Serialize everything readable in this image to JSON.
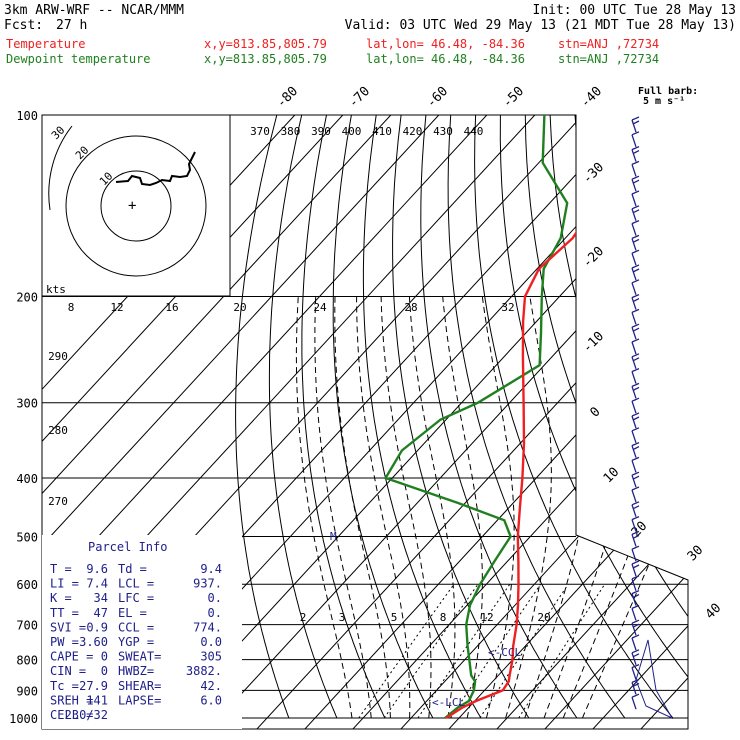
{
  "header": {
    "model": "3km ARW-WRF -- NCAR/MMM",
    "init": "Init: 00 UTC Tue 28 May 13",
    "fcst_label": "Fcst:",
    "fcst_value": "27 h",
    "valid": "Valid: 03 UTC Wed 29 May 13 (21 MDT Tue 28 May 13)",
    "temp_label": "Temperature",
    "temp_loc": "x,y=813.85,805.79",
    "temp_latlon": "lat,lon= 46.48, -84.36",
    "temp_stn": "stn=ANJ ,72734",
    "dew_label": "Dewpoint temperature",
    "dew_loc": "x,y=813.85,805.79",
    "dew_latlon": "lat,lon= 46.48, -84.36",
    "dew_stn": "stn=ANJ ,72734"
  },
  "colors": {
    "temperature": "#ee2020",
    "dewpoint": "#208020",
    "header_text": "#000000",
    "panel_text": "#20208a",
    "wind_barbs": "#20208a"
  },
  "barb_legend": {
    "title": "Full barb:",
    "value": "5 m s⁻¹"
  },
  "parcel_info": {
    "title": "Parcel Info",
    "rows": [
      [
        "T   =",
        "9.6",
        "Td  =",
        "9.4"
      ],
      [
        "LI  =",
        "7.4",
        "LCL =",
        "937."
      ],
      [
        "K   =",
        "34",
        "LFC =",
        "0."
      ],
      [
        "TT  =",
        "47",
        "EL  =",
        "0."
      ],
      [
        "SVI =",
        "0.9",
        "CCL =",
        "774."
      ],
      [
        "PW  =",
        "3.60",
        "YGP =",
        "0.0"
      ],
      [
        "CAPE =",
        "0",
        "SWEAT=",
        "305"
      ],
      [
        "CIN  =",
        "0",
        "HWBZ=",
        "3882."
      ],
      [
        "Tc   =",
        "27.9",
        "SHEAR=",
        "42."
      ],
      [
        "SREH =",
        "141",
        "LAPSE=",
        "6.0"
      ],
      [
        "CELL =",
        "230/32",
        "",
        ""
      ]
    ]
  },
  "hodograph": {
    "units": "kts",
    "ring_labels": [
      "10",
      "20",
      "30"
    ]
  },
  "chart_data": {
    "type": "line",
    "title": "",
    "xlabel": "",
    "ylabel": "",
    "pressure_ticks": [
      "100",
      "200",
      "300",
      "400",
      "500",
      "600",
      "700",
      "800",
      "900",
      "1000"
    ],
    "isotherm_labels": [
      "-80",
      "-70",
      "-60",
      "-50",
      "-40",
      "-30",
      "-20",
      "-10",
      "0",
      "10",
      "20",
      "30",
      "40"
    ],
    "theta_labels": [
      "370",
      "380",
      "390",
      "400",
      "410",
      "420",
      "430",
      "440"
    ],
    "theta_labels_lower": [
      "290",
      "280",
      "270"
    ],
    "thetae_labels": [
      "8",
      "12",
      "16",
      "20",
      "24",
      "28",
      "32"
    ],
    "mixing_ratio_labels": [
      "2",
      "3",
      "5",
      "8",
      "12",
      "20"
    ],
    "annotations": [
      "CCL",
      "LCL",
      "M"
    ],
    "series": [
      {
        "name": "Temperature",
        "pressure": [
          1000,
          960,
          937,
          900,
          870,
          850,
          800,
          760,
          700,
          650,
          600,
          550,
          500,
          450,
          400,
          350,
          300,
          250,
          220,
          200,
          180,
          160,
          140,
          120,
          100
        ],
        "values": [
          9.6,
          11.0,
          12.5,
          16.0,
          15.5,
          14.5,
          12.0,
          9.5,
          6.0,
          2.5,
          -1.5,
          -6.0,
          -11.0,
          -16.0,
          -21.5,
          -28.0,
          -36.0,
          -45.5,
          -52.0,
          -56.5,
          -59.0,
          -58.0,
          -60.0,
          -61.0,
          -62.0
        ]
      },
      {
        "name": "Dewpoint temperature",
        "pressure": [
          1000,
          960,
          937,
          900,
          870,
          850,
          800,
          760,
          700,
          650,
          600,
          550,
          500,
          470,
          440,
          400,
          360,
          320,
          300,
          260,
          230,
          200,
          180,
          160,
          140,
          120,
          100
        ],
        "values": [
          9.4,
          10.0,
          11.0,
          10.0,
          8.5,
          6.5,
          3.0,
          0.0,
          -4.5,
          -7.5,
          -9.5,
          -11.0,
          -12.5,
          -17.0,
          -30.0,
          -50.0,
          -52.0,
          -50.0,
          -45.5,
          -40.0,
          -46.0,
          -53.0,
          -58.0,
          -60.5,
          -66.0,
          -79.0,
          -88.0
        ]
      }
    ]
  }
}
